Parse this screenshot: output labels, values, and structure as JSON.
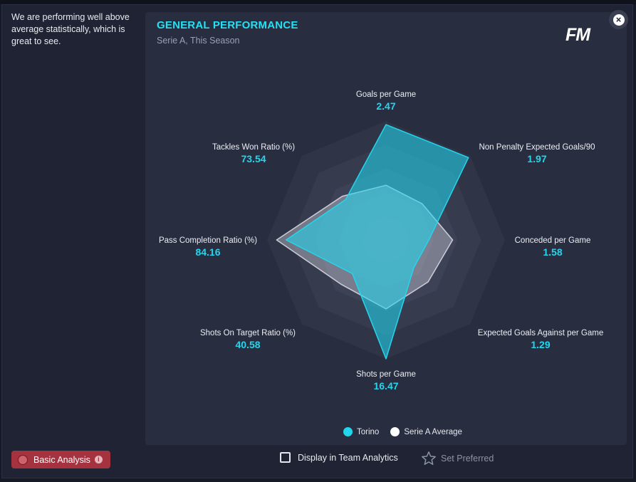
{
  "description": "We are performing well above average statistically, which is great to see.",
  "panel": {
    "title": "GENERAL PERFORMANCE",
    "subtitle": "Serie A, This Season",
    "logo": "FM"
  },
  "chart_data": {
    "type": "radar",
    "axes": [
      {
        "label": "Goals per Game",
        "value": "2.47"
      },
      {
        "label": "Non Penalty Expected Goals/90",
        "value": "1.97"
      },
      {
        "label": "Conceded per Game",
        "value": "1.58"
      },
      {
        "label": "Expected Goals Against per Game",
        "value": "1.29"
      },
      {
        "label": "Shots per Game",
        "value": "16.47"
      },
      {
        "label": "Shots On Target Ratio (%)",
        "value": "40.58"
      },
      {
        "label": "Pass Completion Ratio (%)",
        "value": "84.16"
      },
      {
        "label": "Tackles Won Ratio (%)",
        "value": "73.54"
      }
    ],
    "series": [
      {
        "name": "Torino",
        "color": "#22d6ee",
        "normalized": [
          0.97,
          0.98,
          0.36,
          0.33,
          1.0,
          0.4,
          0.84,
          0.48
        ]
      },
      {
        "name": "Serie A Average",
        "color": "#ffffff",
        "normalized": [
          0.46,
          0.43,
          0.56,
          0.5,
          0.58,
          0.53,
          0.92,
          0.52
        ]
      }
    ],
    "rings": 5
  },
  "legend": {
    "torino": "Torino",
    "average": "Serie A Average"
  },
  "footer": {
    "basic_analysis": "Basic Analysis",
    "display_in_team_analytics": "Display in Team Analytics",
    "set_preferred": "Set Preferred"
  }
}
